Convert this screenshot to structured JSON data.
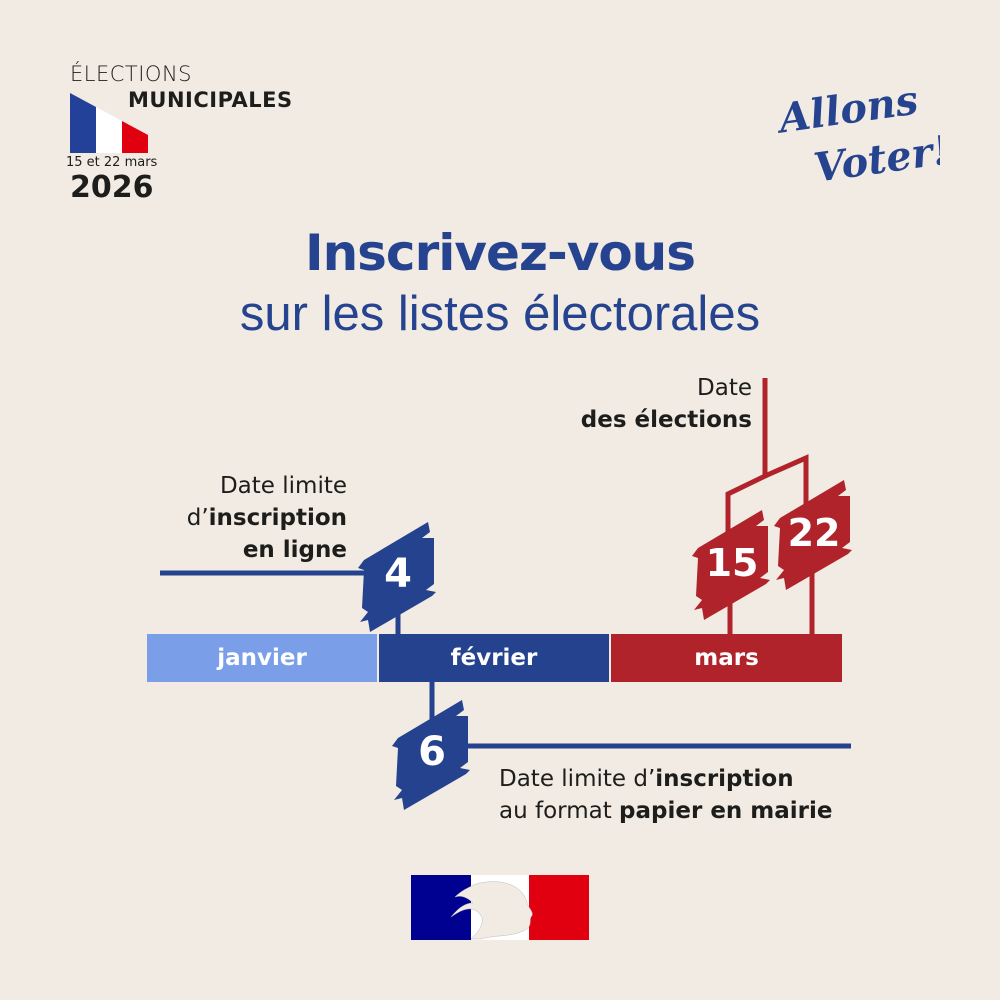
{
  "header": {
    "line1": "ÉLECTIONS",
    "line2": "MUNICIPALES",
    "dates": "15 et 22 mars",
    "year": "2026"
  },
  "logo": {
    "text": "Allons Voter!"
  },
  "title": {
    "line1": "Inscrivez-vous",
    "line2": "sur les listes électorales"
  },
  "timeline": {
    "months": [
      {
        "label": "janvier",
        "color": "#7a9fe8"
      },
      {
        "label": "février",
        "color": "#25428f"
      },
      {
        "label": "mars",
        "color": "#b0232b"
      }
    ],
    "events": [
      {
        "day": "4",
        "month": "février",
        "color": "#25428f",
        "label_plain": "Date limite",
        "label_plain2": "d’",
        "label_bold": "inscription",
        "label_bold2": "en ligne"
      },
      {
        "day": "6",
        "month": "février",
        "color": "#25428f",
        "label_plain": "Date limite d’",
        "label_bold": "inscription",
        "label_plain2": "au format ",
        "label_bold2": "papier en mairie"
      },
      {
        "day": "15",
        "month": "mars",
        "color": "#b0232b"
      },
      {
        "day": "22",
        "month": "mars",
        "color": "#b0232b"
      }
    ],
    "elections_label": {
      "plain": "Date",
      "bold": "des élections"
    }
  },
  "footer": {
    "logo": "Marianne – République Française"
  }
}
